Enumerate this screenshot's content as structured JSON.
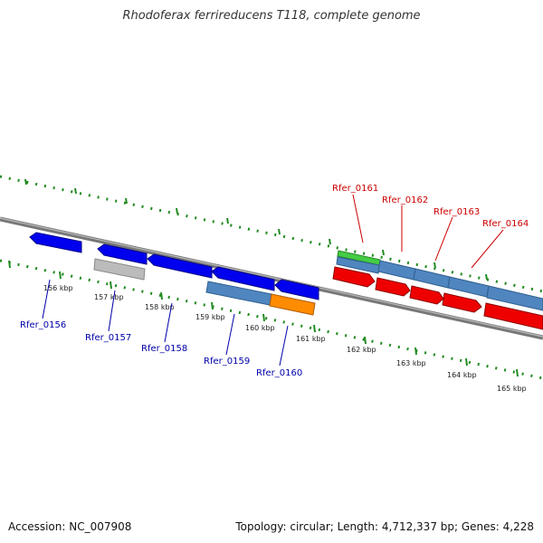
{
  "title": "Rhodoferax ferrireducens T118, complete genome",
  "accession": "Accession: NC_007908",
  "summary": "Topology: circular; Length: 4,712,337 bp; Genes: 4,228",
  "colors": {
    "backbone": "#777777",
    "ticks": "#228b22",
    "forward_gene": "#0000ee",
    "reverse_gene": "#ee0000",
    "rna": "#bbbbbb",
    "feature_blue": "#4f86c0",
    "feature_orange": "#ff8c00",
    "feature_green": "#44cc44",
    "label_forward": "#0000aa",
    "label_reverse": "#cc0000"
  },
  "kbp_labels": [
    "156 kbp",
    "157 kbp",
    "158 kbp",
    "159 kbp",
    "160 kbp",
    "161 kbp",
    "162 kbp",
    "163 kbp",
    "164 kbp",
    "165 kbp"
  ],
  "gene_labels": {
    "forward": [
      "Rfer_0156",
      "Rfer_0157",
      "Rfer_0158",
      "Rfer_0159",
      "Rfer_0160"
    ],
    "reverse": [
      "Rfer_0161",
      "Rfer_0162",
      "Rfer_0163",
      "Rfer_0164"
    ]
  }
}
